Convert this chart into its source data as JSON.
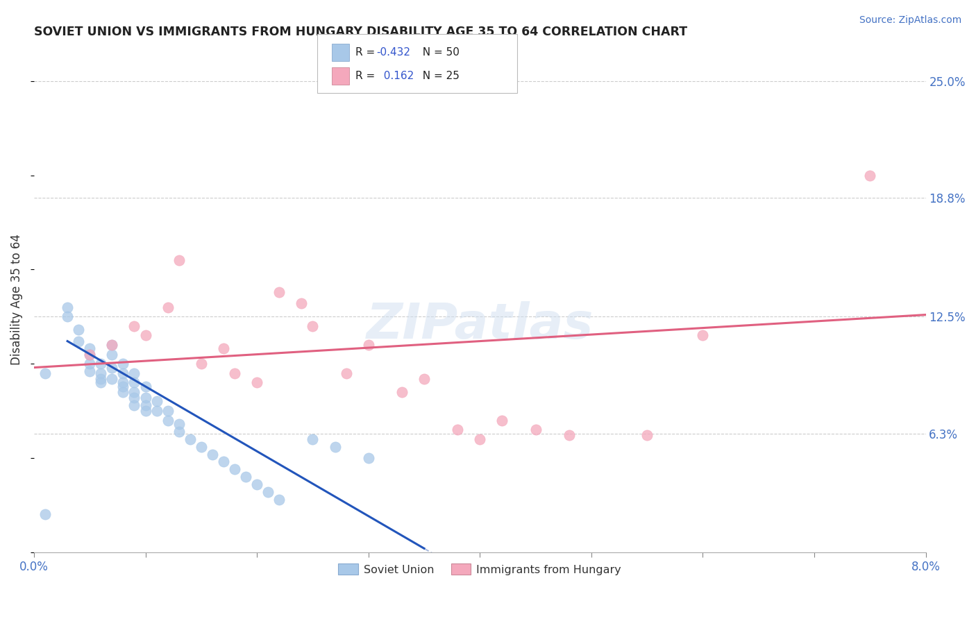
{
  "title": "SOVIET UNION VS IMMIGRANTS FROM HUNGARY DISABILITY AGE 35 TO 64 CORRELATION CHART",
  "source": "Source: ZipAtlas.com",
  "ylabel": "Disability Age 35 to 64",
  "ytick_labels": [
    "6.3%",
    "12.5%",
    "18.8%",
    "25.0%"
  ],
  "ytick_values": [
    0.063,
    0.125,
    0.188,
    0.25
  ],
  "xlim": [
    0.0,
    0.08
  ],
  "ylim": [
    0.0,
    0.268
  ],
  "soviet_color": "#a8c8e8",
  "hungary_color": "#f4a8bc",
  "blue_line_color": "#2255bb",
  "pink_line_color": "#e06080",
  "dashed_line_color": "#aabbdd",
  "soviet_x": [
    0.001,
    0.003,
    0.003,
    0.004,
    0.004,
    0.005,
    0.005,
    0.005,
    0.005,
    0.006,
    0.006,
    0.006,
    0.006,
    0.007,
    0.007,
    0.007,
    0.007,
    0.008,
    0.008,
    0.008,
    0.008,
    0.008,
    0.009,
    0.009,
    0.009,
    0.009,
    0.009,
    0.01,
    0.01,
    0.01,
    0.01,
    0.011,
    0.011,
    0.012,
    0.012,
    0.013,
    0.013,
    0.014,
    0.015,
    0.016,
    0.017,
    0.018,
    0.019,
    0.02,
    0.021,
    0.022,
    0.025,
    0.027,
    0.03,
    0.001
  ],
  "soviet_y": [
    0.02,
    0.13,
    0.125,
    0.118,
    0.112,
    0.108,
    0.105,
    0.1,
    0.096,
    0.1,
    0.095,
    0.092,
    0.09,
    0.11,
    0.105,
    0.098,
    0.092,
    0.1,
    0.095,
    0.09,
    0.088,
    0.085,
    0.095,
    0.09,
    0.085,
    0.082,
    0.078,
    0.088,
    0.082,
    0.078,
    0.075,
    0.08,
    0.075,
    0.075,
    0.07,
    0.068,
    0.064,
    0.06,
    0.056,
    0.052,
    0.048,
    0.044,
    0.04,
    0.036,
    0.032,
    0.028,
    0.06,
    0.056,
    0.05,
    0.095
  ],
  "hungary_x": [
    0.005,
    0.007,
    0.009,
    0.01,
    0.012,
    0.013,
    0.015,
    0.017,
    0.018,
    0.02,
    0.022,
    0.024,
    0.025,
    0.028,
    0.03,
    0.033,
    0.035,
    0.038,
    0.04,
    0.042,
    0.045,
    0.048,
    0.055,
    0.06,
    0.075
  ],
  "hungary_y": [
    0.105,
    0.11,
    0.12,
    0.115,
    0.13,
    0.155,
    0.1,
    0.108,
    0.095,
    0.09,
    0.138,
    0.132,
    0.12,
    0.095,
    0.11,
    0.085,
    0.092,
    0.065,
    0.06,
    0.07,
    0.065,
    0.062,
    0.062,
    0.115,
    0.2
  ],
  "blue_line_x0": 0.003,
  "blue_line_y0": 0.112,
  "blue_line_x1": 0.035,
  "blue_line_y1": 0.002,
  "pink_line_x0": 0.0,
  "pink_line_y0": 0.098,
  "pink_line_x1": 0.08,
  "pink_line_y1": 0.126
}
